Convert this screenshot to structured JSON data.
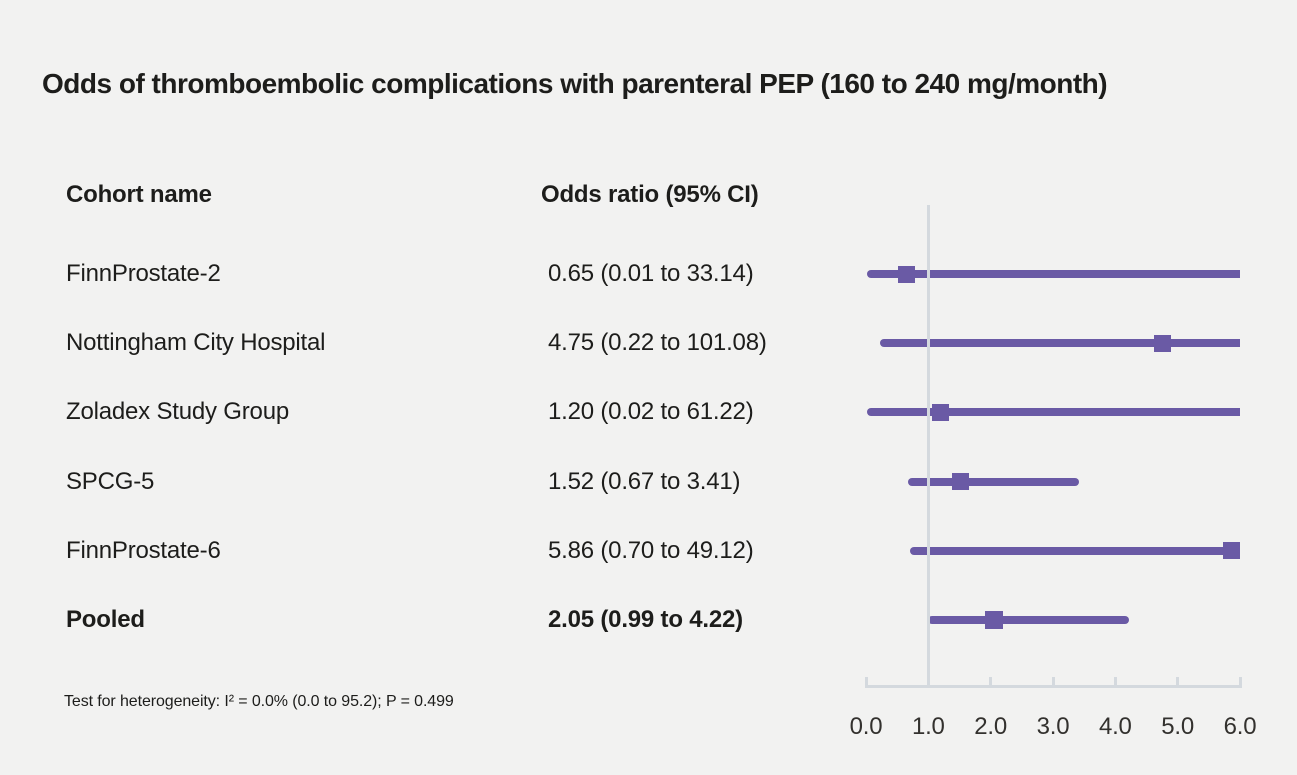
{
  "title": "Odds of thromboembolic complications with parenteral PEP (160 to 240 mg/month)",
  "header": {
    "cohort": "Cohort name",
    "odds": "Odds ratio (95% CI)"
  },
  "footnote": "Test for heterogeneity: I² = 0.0% (0.0 to 95.2); P = 0.499",
  "colors": {
    "accent_purple": "#6a5aa5",
    "axis_gray": "#d4d9de",
    "background": "#f2f2f1",
    "text": "#1d1d1b"
  },
  "chart_data": {
    "type": "forest",
    "title": "Odds of thromboembolic complications with parenteral PEP (160 to 240 mg/month)",
    "xlabel": "",
    "ylabel": "",
    "xlim": [
      0.0,
      6.0
    ],
    "x_ticks": [
      "0.0",
      "1.0",
      "2.0",
      "3.0",
      "4.0",
      "5.0",
      "6.0"
    ],
    "x_tick_values": [
      0.0,
      1.0,
      2.0,
      3.0,
      4.0,
      5.0,
      6.0
    ],
    "reference_line_x": 1.0,
    "grid": false,
    "legend": "none",
    "rows": [
      {
        "label": "FinnProstate-2",
        "or_text": "0.65 (0.01 to 33.14)",
        "estimate": 0.65,
        "ci_low": 0.01,
        "ci_high": 33.14,
        "pooled": false
      },
      {
        "label": "Nottingham City Hospital",
        "or_text": "4.75 (0.22 to 101.08)",
        "estimate": 4.75,
        "ci_low": 0.22,
        "ci_high": 101.08,
        "pooled": false
      },
      {
        "label": "Zoladex Study Group",
        "or_text": "1.20 (0.02 to 61.22)",
        "estimate": 1.2,
        "ci_low": 0.02,
        "ci_high": 61.22,
        "pooled": false
      },
      {
        "label": "SPCG-5",
        "or_text": "1.52 (0.67 to 3.41)",
        "estimate": 1.52,
        "ci_low": 0.67,
        "ci_high": 3.41,
        "pooled": false
      },
      {
        "label": "FinnProstate-6",
        "or_text": "5.86 (0.70 to 49.12)",
        "estimate": 5.86,
        "ci_low": 0.7,
        "ci_high": 49.12,
        "pooled": false
      },
      {
        "label": "Pooled",
        "or_text": "2.05 (0.99 to 4.22)",
        "estimate": 2.05,
        "ci_low": 0.99,
        "ci_high": 4.22,
        "pooled": true
      }
    ],
    "heterogeneity_note": "Test for heterogeneity: I² = 0.0% (0.0 to 95.2); P = 0.499"
  }
}
